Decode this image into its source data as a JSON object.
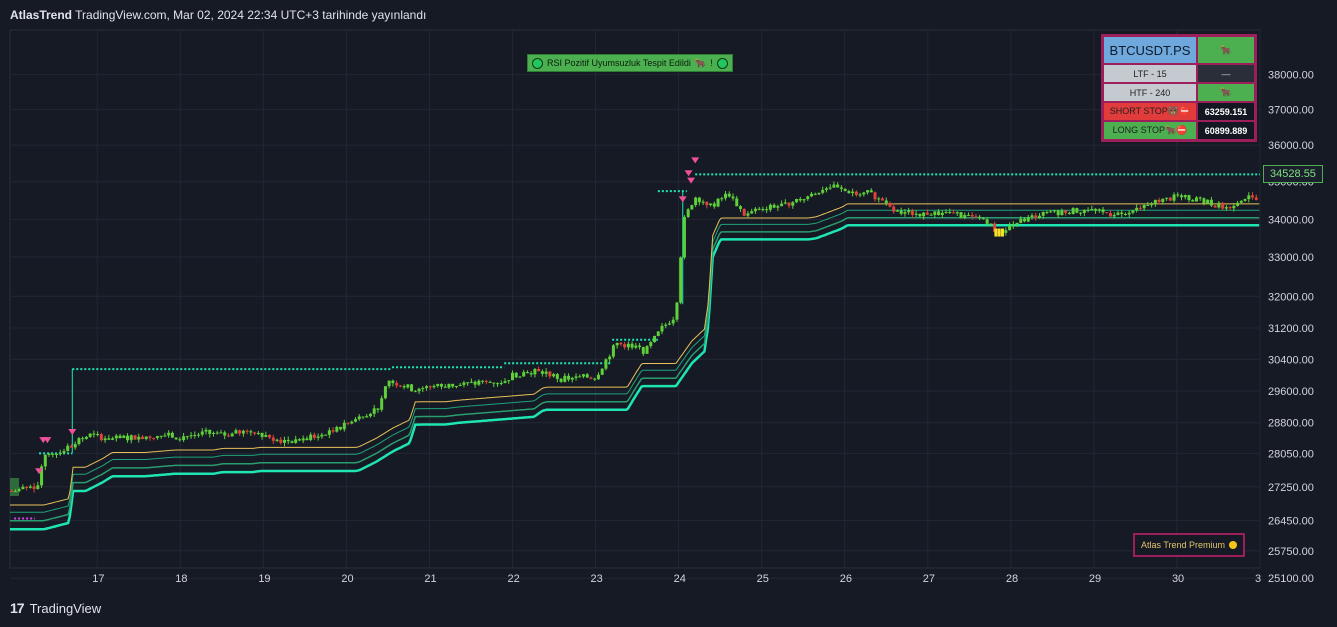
{
  "header": {
    "brand": "AtlasTrend",
    "text": "TradingView.com, Mar 02, 2024 22:34 UTC+3 tarihinde yayınlandı"
  },
  "footer": {
    "logo": "17",
    "label": "TradingView"
  },
  "rsi_banner": {
    "text": "RSI Pozitif Uyumsuzluk Tespit Edildi",
    "bear_icon": "🐂",
    "suffix": "!"
  },
  "info_table": {
    "symbol": "BTCUSDT.PS",
    "symbol_signal": "🐂",
    "ltf_label": "LTF - 15",
    "ltf_value": "—",
    "htf_label": "HTF - 240",
    "htf_value": "🐂",
    "short_stop_label": "SHORT STOP🐻⛔",
    "short_stop_value": "63259.151",
    "long_stop_label": "LONG STOP🐂⛔",
    "long_stop_value": "60899.889"
  },
  "premium": {
    "text": "Atlas Trend Premium"
  },
  "colors": {
    "background": "#161a25",
    "grid": "#232734",
    "candle_up": "#5fd03a",
    "candle_down": "#e0433a",
    "band_outer": "#1ee6b2",
    "band_inner": "#2a9d6f",
    "band_line": "#e8c15a",
    "stop_line": "#1ee6b2",
    "signal": "#f0509a"
  },
  "chart_data": {
    "type": "candlestick",
    "symbol": "BTCUSDT.PS",
    "last_price": "34528.55",
    "x_ticks": [
      "17",
      "18",
      "19",
      "20",
      "21",
      "22",
      "23",
      "24",
      "25",
      "26",
      "27",
      "28",
      "29",
      "30",
      "3"
    ],
    "y_ticks": [
      "38000.00",
      "37000.00",
      "36000.00",
      "35000.00",
      "34000.00",
      "33000.00",
      "32000.00",
      "31200.00",
      "30400.00",
      "29600.00",
      "28800.00",
      "28050.00",
      "27250.00",
      "26450.00",
      "25750.00",
      "25100.00"
    ],
    "y_tick_values": [
      38000,
      37000,
      36000,
      35000,
      34000,
      33000,
      32000,
      31200,
      30400,
      29600,
      28800,
      28050,
      27250,
      26450,
      25750,
      25100
    ],
    "y_tick_positions": [
      0.917,
      0.852,
      0.786,
      0.718,
      0.648,
      0.578,
      0.505,
      0.446,
      0.388,
      0.329,
      0.27,
      0.213,
      0.151,
      0.088,
      0.032,
      -0.019
    ],
    "price_path": [
      [
        16.0,
        27150
      ],
      [
        16.3,
        27300
      ],
      [
        16.35,
        28050
      ],
      [
        16.5,
        28050
      ],
      [
        16.7,
        28250
      ],
      [
        16.9,
        28500
      ],
      [
        17.2,
        28400
      ],
      [
        17.5,
        28450
      ],
      [
        17.8,
        28500
      ],
      [
        18.0,
        28450
      ],
      [
        18.3,
        28550
      ],
      [
        18.5,
        28500
      ],
      [
        18.9,
        28600
      ],
      [
        19.2,
        28350
      ],
      [
        19.5,
        28400
      ],
      [
        19.8,
        28550
      ],
      [
        20.0,
        28750
      ],
      [
        20.2,
        29000
      ],
      [
        20.4,
        29200
      ],
      [
        20.5,
        29850
      ],
      [
        20.6,
        29800
      ],
      [
        20.8,
        29650
      ],
      [
        21.0,
        29700
      ],
      [
        21.3,
        29750
      ],
      [
        21.6,
        29800
      ],
      [
        21.9,
        29850
      ],
      [
        22.0,
        30000
      ],
      [
        22.2,
        30100
      ],
      [
        22.4,
        30050
      ],
      [
        22.6,
        29900
      ],
      [
        22.9,
        29950
      ],
      [
        23.0,
        29950
      ],
      [
        23.1,
        30300
      ],
      [
        23.25,
        30800
      ],
      [
        23.4,
        30750
      ],
      [
        23.6,
        30600
      ],
      [
        23.8,
        31200
      ],
      [
        23.95,
        31500
      ],
      [
        24.0,
        32200
      ],
      [
        24.05,
        33900
      ],
      [
        24.15,
        34400
      ],
      [
        24.2,
        34600
      ],
      [
        24.4,
        34350
      ],
      [
        24.6,
        34700
      ],
      [
        24.8,
        34100
      ],
      [
        25.0,
        34300
      ],
      [
        25.3,
        34400
      ],
      [
        25.6,
        34650
      ],
      [
        25.8,
        34900
      ],
      [
        26.0,
        34750
      ],
      [
        26.3,
        34700
      ],
      [
        26.6,
        34200
      ],
      [
        26.9,
        34150
      ],
      [
        27.2,
        34200
      ],
      [
        27.5,
        34050
      ],
      [
        27.7,
        34000
      ],
      [
        27.85,
        33600
      ],
      [
        28.0,
        33850
      ],
      [
        28.3,
        34100
      ],
      [
        28.6,
        34200
      ],
      [
        28.9,
        34250
      ],
      [
        29.2,
        34150
      ],
      [
        29.5,
        34250
      ],
      [
        29.8,
        34500
      ],
      [
        30.0,
        34600
      ],
      [
        30.3,
        34500
      ],
      [
        30.6,
        34300
      ],
      [
        30.8,
        34600
      ],
      [
        31.0,
        34500
      ]
    ],
    "resistance_segments": [
      {
        "from": 16.3,
        "to": 16.7,
        "price": 28050
      },
      {
        "from": 16.7,
        "to": 20.55,
        "price": 30150
      },
      {
        "from": 20.55,
        "to": 21.9,
        "price": 30200
      },
      {
        "from": 21.9,
        "to": 23.2,
        "price": 30300
      },
      {
        "from": 23.2,
        "to": 23.75,
        "price": 30900
      },
      {
        "from": 23.75,
        "to": 24.1,
        "price": 34750
      },
      {
        "from": 24.2,
        "to": 31.0,
        "price": 35200
      }
    ],
    "signals_down": [
      16.3,
      16.35,
      16.4,
      16.7,
      24.05,
      24.2,
      24.15,
      24.12
    ],
    "x_range": [
      15.95,
      31.0
    ],
    "y_range": [
      24900,
      38500
    ]
  }
}
